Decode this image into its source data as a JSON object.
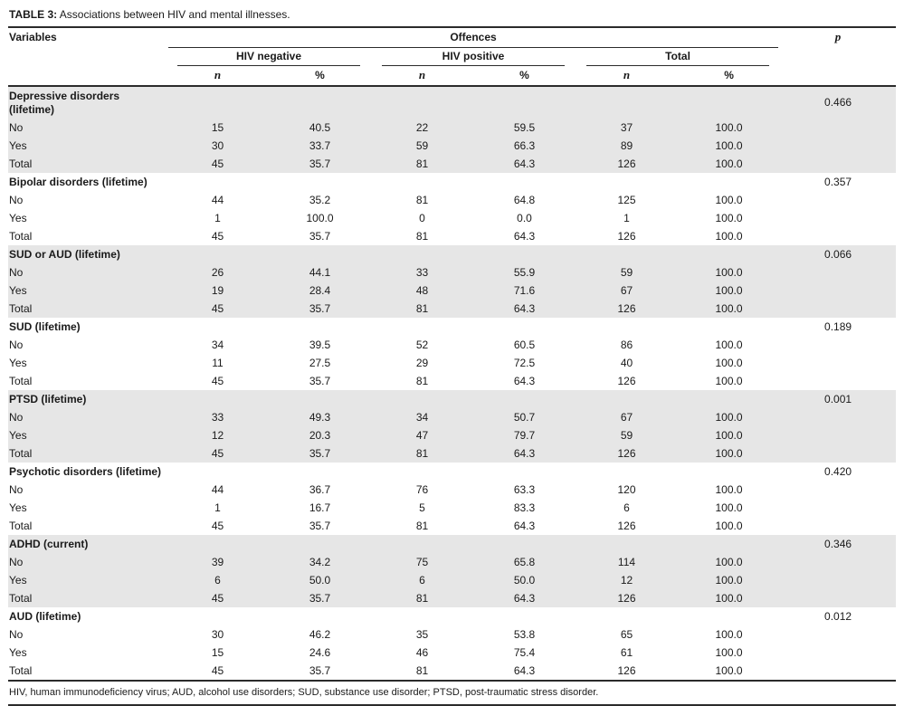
{
  "title": {
    "label": "TABLE 3:",
    "caption": " Associations between HIV and mental illnesses."
  },
  "table": {
    "header": {
      "variables": "Variables",
      "offences": "Offences",
      "p": "p",
      "col_groups": [
        "HIV negative",
        "HIV positive",
        "Total"
      ],
      "n_label": "n",
      "pct_label": "%"
    },
    "groups": [
      {
        "name": "Depressive disorders (lifetime)",
        "p": "0.466",
        "shaded": true,
        "rows": [
          {
            "label": "No",
            "values": [
              "15",
              "40.5",
              "22",
              "59.5",
              "37",
              "100.0"
            ]
          },
          {
            "label": "Yes",
            "values": [
              "30",
              "33.7",
              "59",
              "66.3",
              "89",
              "100.0"
            ]
          },
          {
            "label": "Total",
            "values": [
              "45",
              "35.7",
              "81",
              "64.3",
              "126",
              "100.0"
            ]
          }
        ]
      },
      {
        "name": "Bipolar disorders (lifetime)",
        "p": "0.357",
        "shaded": false,
        "rows": [
          {
            "label": "No",
            "values": [
              "44",
              "35.2",
              "81",
              "64.8",
              "125",
              "100.0"
            ]
          },
          {
            "label": "Yes",
            "values": [
              "1",
              "100.0",
              "0",
              "0.0",
              "1",
              "100.0"
            ]
          },
          {
            "label": "Total",
            "values": [
              "45",
              "35.7",
              "81",
              "64.3",
              "126",
              "100.0"
            ]
          }
        ]
      },
      {
        "name": "SUD or AUD (lifetime)",
        "p": "0.066",
        "shaded": true,
        "rows": [
          {
            "label": "No",
            "values": [
              "26",
              "44.1",
              "33",
              "55.9",
              "59",
              "100.0"
            ]
          },
          {
            "label": "Yes",
            "values": [
              "19",
              "28.4",
              "48",
              "71.6",
              "67",
              "100.0"
            ]
          },
          {
            "label": "Total",
            "values": [
              "45",
              "35.7",
              "81",
              "64.3",
              "126",
              "100.0"
            ]
          }
        ]
      },
      {
        "name": "SUD (lifetime)",
        "p": "0.189",
        "shaded": false,
        "rows": [
          {
            "label": "No",
            "values": [
              "34",
              "39.5",
              "52",
              "60.5",
              "86",
              "100.0"
            ]
          },
          {
            "label": "Yes",
            "values": [
              "11",
              "27.5",
              "29",
              "72.5",
              "40",
              "100.0"
            ]
          },
          {
            "label": "Total",
            "values": [
              "45",
              "35.7",
              "81",
              "64.3",
              "126",
              "100.0"
            ]
          }
        ]
      },
      {
        "name": "PTSD (lifetime)",
        "p": "0.001",
        "shaded": true,
        "rows": [
          {
            "label": "No",
            "values": [
              "33",
              "49.3",
              "34",
              "50.7",
              "67",
              "100.0"
            ]
          },
          {
            "label": "Yes",
            "values": [
              "12",
              "20.3",
              "47",
              "79.7",
              "59",
              "100.0"
            ]
          },
          {
            "label": "Total",
            "values": [
              "45",
              "35.7",
              "81",
              "64.3",
              "126",
              "100.0"
            ]
          }
        ]
      },
      {
        "name": "Psychotic disorders (lifetime)",
        "p": "0.420",
        "shaded": false,
        "rows": [
          {
            "label": "No",
            "values": [
              "44",
              "36.7",
              "76",
              "63.3",
              "120",
              "100.0"
            ]
          },
          {
            "label": "Yes",
            "values": [
              "1",
              "16.7",
              "5",
              "83.3",
              "6",
              "100.0"
            ]
          },
          {
            "label": "Total",
            "values": [
              "45",
              "35.7",
              "81",
              "64.3",
              "126",
              "100.0"
            ]
          }
        ]
      },
      {
        "name": "ADHD (current)",
        "p": "0.346",
        "shaded": true,
        "rows": [
          {
            "label": "No",
            "values": [
              "39",
              "34.2",
              "75",
              "65.8",
              "114",
              "100.0"
            ]
          },
          {
            "label": "Yes",
            "values": [
              "6",
              "50.0",
              "6",
              "50.0",
              "12",
              "100.0"
            ]
          },
          {
            "label": "Total",
            "values": [
              "45",
              "35.7",
              "81",
              "64.3",
              "126",
              "100.0"
            ]
          }
        ]
      },
      {
        "name": "AUD (lifetime)",
        "p": "0.012",
        "shaded": false,
        "rows": [
          {
            "label": "No",
            "values": [
              "30",
              "46.2",
              "35",
              "53.8",
              "65",
              "100.0"
            ]
          },
          {
            "label": "Yes",
            "values": [
              "15",
              "24.6",
              "46",
              "75.4",
              "61",
              "100.0"
            ]
          },
          {
            "label": "Total",
            "values": [
              "45",
              "35.7",
              "81",
              "64.3",
              "126",
              "100.0"
            ]
          }
        ]
      }
    ]
  },
  "footnote": "HIV, human immunodeficiency virus; AUD, alcohol use disorders; SUD, substance use disorder; PTSD, post-traumatic stress disorder.",
  "colors": {
    "shaded_row": "#e6e6e6",
    "rule": "#2b2b2b"
  }
}
